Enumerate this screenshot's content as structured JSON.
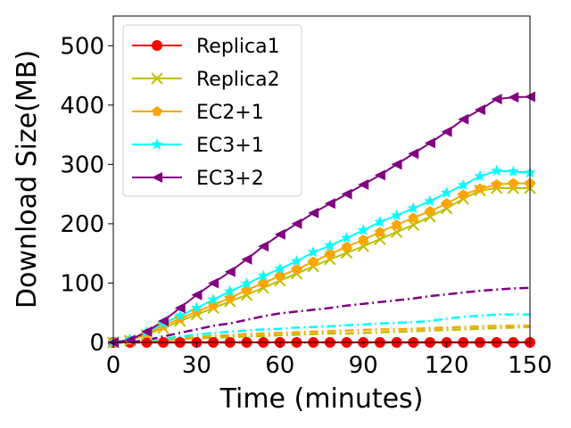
{
  "chart_data": {
    "type": "line",
    "title": "",
    "xlabel": "Time (minutes)",
    "ylabel": "Download Size(MB)",
    "xlim": [
      0,
      150
    ],
    "ylim": [
      0,
      550
    ],
    "xticks": [
      0,
      30,
      60,
      90,
      120,
      150
    ],
    "yticks": [
      0,
      100,
      200,
      300,
      400,
      500
    ],
    "grid": false,
    "legend_position": "top-left",
    "x": [
      0,
      6,
      12,
      18,
      24,
      30,
      36,
      42,
      48,
      54,
      60,
      66,
      72,
      78,
      84,
      90,
      96,
      102,
      108,
      114,
      120,
      126,
      132,
      138,
      144,
      150
    ],
    "series": [
      {
        "name": "Replica1",
        "color": "#ff0000",
        "marker": "circle",
        "linestyle": "solid",
        "values": [
          0,
          0,
          0,
          0,
          0,
          0,
          0,
          0,
          0,
          0,
          0,
          0,
          0,
          0,
          0,
          0,
          0,
          0,
          0,
          0,
          0,
          0,
          0,
          0,
          0,
          0
        ]
      },
      {
        "name": "Replica2",
        "color": "#bfbf00",
        "marker": "x",
        "linestyle": "solid",
        "values": [
          0,
          3,
          13,
          24,
          36,
          47,
          58,
          69,
          80,
          92,
          104,
          116,
          128,
          140,
          151,
          162,
          174,
          186,
          198,
          212,
          226,
          242,
          256,
          260,
          260,
          260
        ]
      },
      {
        "name": "EC2+1",
        "color": "#ffa500",
        "marker": "pentagon",
        "linestyle": "solid",
        "values": [
          0,
          4,
          15,
          28,
          40,
          52,
          63,
          75,
          88,
          100,
          112,
          123,
          136,
          149,
          161,
          173,
          186,
          198,
          210,
          221,
          234,
          249,
          259,
          266,
          268,
          268
        ]
      },
      {
        "name": "EC3+1",
        "color": "#00ffff",
        "marker": "star",
        "linestyle": "solid",
        "values": [
          0,
          5,
          17,
          32,
          45,
          58,
          72,
          86,
          99,
          112,
          124,
          137,
          152,
          163,
          176,
          189,
          203,
          214,
          226,
          238,
          252,
          265,
          280,
          289,
          288,
          286
        ]
      },
      {
        "name": "EC3+2",
        "color": "#800080",
        "marker": "triangle-left",
        "linestyle": "solid",
        "values": [
          0,
          4,
          18,
          36,
          58,
          80,
          100,
          119,
          140,
          162,
          182,
          200,
          218,
          234,
          250,
          266,
          282,
          300,
          318,
          336,
          355,
          376,
          392,
          410,
          413,
          414
        ]
      }
    ],
    "secondary_series": [
      {
        "name": "Replica1",
        "color": "#ff0000",
        "linestyle": "dashdot",
        "values": [
          0,
          0,
          0,
          0,
          0,
          0,
          0,
          0,
          0,
          0,
          0,
          0,
          0,
          0,
          0,
          0,
          0,
          0,
          0,
          0,
          0,
          0,
          0,
          0,
          0,
          0
        ]
      },
      {
        "name": "Replica2",
        "color": "#bfbf00",
        "linestyle": "dashdot",
        "values": [
          0,
          0,
          2,
          4,
          6,
          7,
          8,
          9,
          10,
          11,
          12,
          13,
          14,
          15,
          15,
          16,
          17,
          18,
          19,
          20,
          21,
          22,
          23,
          24,
          25,
          26
        ]
      },
      {
        "name": "EC2+1",
        "color": "#ffa500",
        "linestyle": "dashdot",
        "values": [
          0,
          0,
          2,
          4,
          7,
          9,
          11,
          12,
          14,
          15,
          16,
          17,
          18,
          19,
          20,
          21,
          22,
          22,
          23,
          24,
          25,
          26,
          27,
          28,
          28,
          28
        ]
      },
      {
        "name": "EC3+1",
        "color": "#00ffff",
        "linestyle": "dashdot",
        "values": [
          0,
          0,
          3,
          6,
          10,
          13,
          16,
          18,
          20,
          22,
          23,
          25,
          26,
          27,
          29,
          30,
          32,
          33,
          34,
          36,
          40,
          43,
          45,
          47,
          47,
          47
        ]
      },
      {
        "name": "EC3+2",
        "color": "#800080",
        "linestyle": "dashdot",
        "values": [
          0,
          0,
          4,
          10,
          16,
          22,
          28,
          32,
          38,
          44,
          49,
          52,
          55,
          58,
          62,
          65,
          68,
          71,
          74,
          78,
          81,
          84,
          87,
          89,
          91,
          92
        ]
      }
    ]
  }
}
